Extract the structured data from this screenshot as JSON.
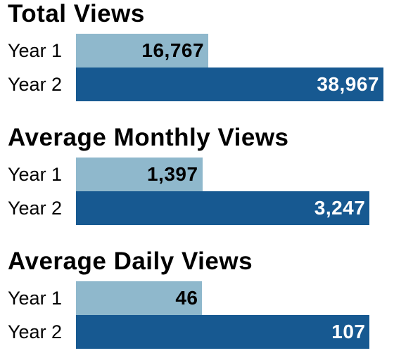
{
  "chart_data": [
    {
      "type": "bar",
      "orientation": "horizontal",
      "title": "Total Views",
      "categories": [
        "Year 1",
        "Year 2"
      ],
      "values": [
        16767,
        38967
      ],
      "value_labels": [
        "16,767",
        "38,967"
      ],
      "colors": [
        "#8fb8cc",
        "#175991"
      ],
      "label_colors": [
        "#000000",
        "#ffffff"
      ],
      "xlim": [
        0,
        38967
      ]
    },
    {
      "type": "bar",
      "orientation": "horizontal",
      "title": "Average Monthly Views",
      "categories": [
        "Year 1",
        "Year 2"
      ],
      "values": [
        1397,
        3247
      ],
      "value_labels": [
        "1,397",
        "3,247"
      ],
      "colors": [
        "#8fb8cc",
        "#175991"
      ],
      "label_colors": [
        "#000000",
        "#ffffff"
      ],
      "xlim": [
        0,
        3400
      ]
    },
    {
      "type": "bar",
      "orientation": "horizontal",
      "title": "Average Daily Views",
      "categories": [
        "Year 1",
        "Year 2"
      ],
      "values": [
        46,
        107
      ],
      "value_labels": [
        "46",
        "107"
      ],
      "colors": [
        "#8fb8cc",
        "#175991"
      ],
      "label_colors": [
        "#000000",
        "#ffffff"
      ],
      "xlim": [
        0,
        112
      ]
    }
  ]
}
